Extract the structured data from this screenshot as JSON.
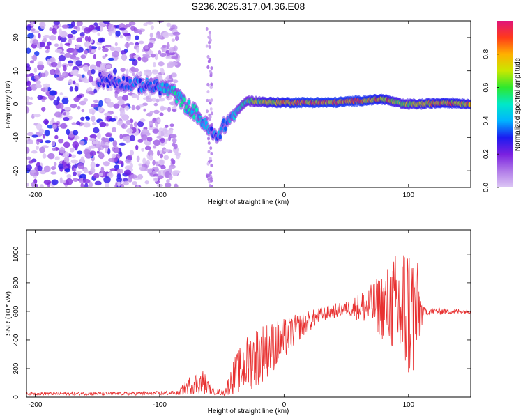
{
  "title": "S236.2025.317.04.36.E08",
  "chart_data": [
    {
      "type": "heatmap",
      "name": "spectrogram",
      "xlabel": "Height of straight line (km)",
      "ylabel": "Frequency (Hz)",
      "xlim": [
        -207,
        150
      ],
      "ylim": [
        -25,
        25
      ],
      "xticks": [
        -200,
        -100,
        0,
        100
      ],
      "yticks": [
        -20,
        -10,
        0,
        10,
        20
      ],
      "colorbar": {
        "label": "Normalized spectral amplitude",
        "range": [
          0,
          1
        ],
        "ticks": [
          "0.0",
          "0.2",
          "0.4",
          "0.6",
          "0.8"
        ],
        "colors": [
          "#ddc8f5",
          "#b07ae8",
          "#7a20e0",
          "#1b1bf0",
          "#00b4ff",
          "#00e8c8",
          "#2ee82e",
          "#c8e800",
          "#ffb000",
          "#ff3a1a",
          "#e0147a"
        ]
      },
      "noise_region": {
        "x": [
          -207,
          -100
        ],
        "y": [
          -25,
          25
        ]
      },
      "ridge": [
        {
          "x": -150,
          "f": 7.5,
          "amp": 0.3
        },
        {
          "x": -140,
          "f": 7.0,
          "amp": 0.3
        },
        {
          "x": -100,
          "f": 5.0,
          "amp": 0.4
        },
        {
          "x": -90,
          "f": 4.0,
          "amp": 0.5
        },
        {
          "x": -80,
          "f": 0.0,
          "amp": 0.5
        },
        {
          "x": -70,
          "f": -3.0,
          "amp": 0.5
        },
        {
          "x": -60,
          "f": -8.0,
          "amp": 0.4
        },
        {
          "x": -55,
          "f": -10.0,
          "amp": 0.4
        },
        {
          "x": -45,
          "f": -5.0,
          "amp": 0.4
        },
        {
          "x": -30,
          "f": 1.0,
          "amp": 0.6
        },
        {
          "x": -10,
          "f": 0.5,
          "amp": 0.8
        },
        {
          "x": 10,
          "f": 0.5,
          "amp": 0.9
        },
        {
          "x": 40,
          "f": 0.5,
          "amp": 0.9
        },
        {
          "x": 60,
          "f": 1.0,
          "amp": 0.9
        },
        {
          "x": 80,
          "f": 1.5,
          "amp": 0.85
        },
        {
          "x": 95,
          "f": 0.0,
          "amp": 0.7
        },
        {
          "x": 110,
          "f": 0.0,
          "amp": 0.8
        },
        {
          "x": 130,
          "f": 0.5,
          "amp": 0.85
        },
        {
          "x": 150,
          "f": 0.0,
          "amp": 0.8
        }
      ]
    },
    {
      "type": "line",
      "name": "snr",
      "xlabel": "Height of straight line (km)",
      "ylabel": "SNR (10 * v/v)",
      "xlim": [
        -207,
        150
      ],
      "ylim": [
        0,
        1170
      ],
      "xticks": [
        -200,
        -100,
        0,
        100
      ],
      "yticks": [
        0,
        200,
        400,
        600,
        800,
        1000
      ],
      "color": "#e83030",
      "envelope": [
        {
          "x": -207,
          "mean": 25,
          "amp": 10
        },
        {
          "x": -120,
          "mean": 25,
          "amp": 12
        },
        {
          "x": -85,
          "mean": 30,
          "amp": 15
        },
        {
          "x": -75,
          "mean": 90,
          "amp": 70
        },
        {
          "x": -65,
          "mean": 110,
          "amp": 90
        },
        {
          "x": -58,
          "mean": 40,
          "amp": 20
        },
        {
          "x": -48,
          "mean": 30,
          "amp": 20
        },
        {
          "x": -40,
          "mean": 150,
          "amp": 130
        },
        {
          "x": -30,
          "mean": 230,
          "amp": 200
        },
        {
          "x": -20,
          "mean": 300,
          "amp": 220
        },
        {
          "x": -10,
          "mean": 350,
          "amp": 180
        },
        {
          "x": 0,
          "mean": 400,
          "amp": 150
        },
        {
          "x": 10,
          "mean": 480,
          "amp": 100
        },
        {
          "x": 30,
          "mean": 580,
          "amp": 50
        },
        {
          "x": 50,
          "mean": 620,
          "amp": 50
        },
        {
          "x": 70,
          "mean": 640,
          "amp": 150
        },
        {
          "x": 85,
          "mean": 640,
          "amp": 300
        },
        {
          "x": 95,
          "mean": 600,
          "amp": 500
        },
        {
          "x": 105,
          "mean": 600,
          "amp": 500
        },
        {
          "x": 112,
          "mean": 600,
          "amp": 30
        },
        {
          "x": 150,
          "mean": 600,
          "amp": 15
        }
      ]
    }
  ]
}
